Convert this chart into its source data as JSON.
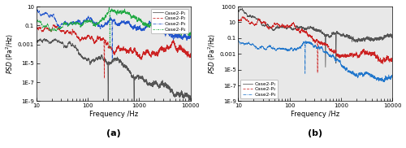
{
  "title_a": "(a)",
  "title_b": "(b)",
  "xlabel": "Frequency /Hz",
  "xlim": [
    10,
    10000
  ],
  "ylim_a": [
    1e-09,
    10
  ],
  "ylim_b": [
    1e-09,
    1000
  ],
  "legend_a": [
    "Case2-P₁",
    "Case2-P₂",
    "Case2-P₃",
    "Case2-P₄"
  ],
  "legend_b": [
    "Case2-P₁",
    "Case2-P₂",
    "Case2-P₃"
  ],
  "colors_a": {
    "P1": "#555555",
    "P2": "#cc2222",
    "P3": "#2255cc",
    "P4": "#22aa44"
  },
  "colors_b": {
    "P1": "#555555",
    "P2": "#cc2222",
    "P3": "#2277cc"
  },
  "bg_color": "#e8e8e8"
}
